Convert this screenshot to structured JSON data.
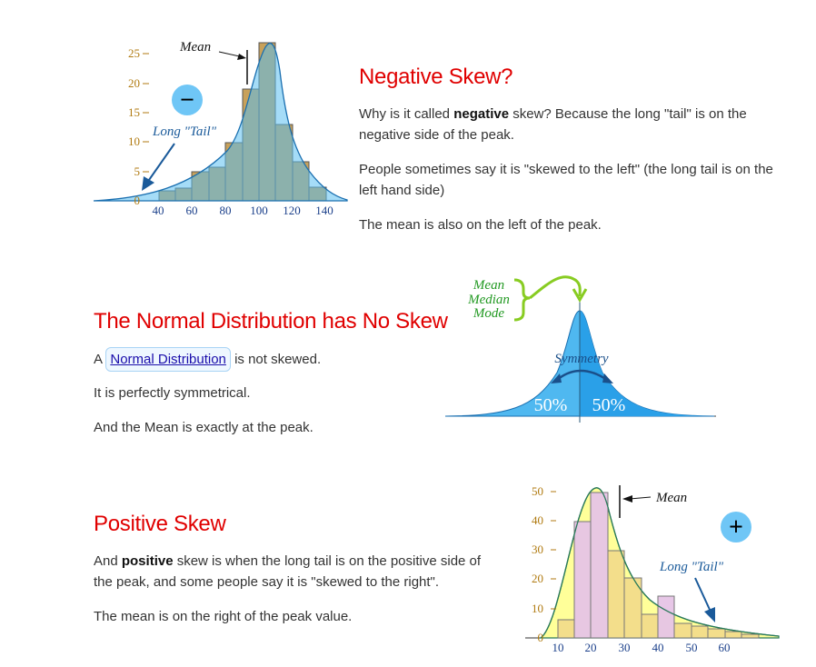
{
  "negative": {
    "title": "Negative Skew?",
    "p1_a": "Why is it called ",
    "p1_b": "negative",
    "p1_c": " skew? Because the long \"tail\" is on the negative side of the peak.",
    "p2": "People sometimes say it is \"skewed to the left\" (the long tail is on the left hand side)",
    "p3": "The mean is also on the left of the peak."
  },
  "normal": {
    "title": "The Normal Distribution has No Skew",
    "p1_a": "A ",
    "p1_link": "Normal Distribution",
    "p1_c": " is not skewed.",
    "p2": "It is perfectly symmetrical.",
    "p3": "And the Mean is exactly at the peak."
  },
  "positive": {
    "title": "Positive Skew",
    "p1_a": "And ",
    "p1_b": "positive",
    "p1_c": " skew is when the long tail is on the positive side of the peak, and some people say it is \"skewed to the right\".",
    "p2": "The mean is on the right of the peak value."
  },
  "chart_data": [
    {
      "type": "bar",
      "x": [
        40,
        50,
        60,
        70,
        80,
        90,
        100,
        110,
        120,
        130,
        140
      ],
      "values": [
        1,
        1.5,
        5,
        6,
        10,
        19,
        27,
        13,
        7,
        2,
        0
      ],
      "xticks": [
        "40",
        "60",
        "80",
        "100",
        "120",
        "140"
      ],
      "yticks": [
        "0",
        "5",
        "10",
        "15",
        "20",
        "25"
      ],
      "ylim": [
        0,
        27
      ],
      "annotations": [
        "Mean",
        "Long \"Tail\""
      ],
      "sign": "−",
      "colors": {
        "bar": "#c8a15a",
        "curve_fill": "#5bc0f0",
        "curve_line": "#1a6fb0"
      }
    },
    {
      "type": "area",
      "labels": [
        "Mean",
        "Median",
        "Mode",
        "Symmetry",
        "50%",
        "50%"
      ],
      "colors": {
        "fill": "#4fb8f0",
        "brace": "#88cc22",
        "label": "#229922"
      }
    },
    {
      "type": "bar",
      "x": [
        10,
        15,
        20,
        25,
        30,
        35,
        40,
        45,
        50,
        55,
        60,
        65
      ],
      "values": [
        6,
        40,
        50,
        30,
        21,
        8,
        14,
        5,
        4,
        3,
        2,
        1
      ],
      "xticks": [
        "10",
        "20",
        "30",
        "40",
        "50",
        "60"
      ],
      "yticks": [
        "0",
        "10",
        "20",
        "30",
        "40",
        "50"
      ],
      "ylim": [
        0,
        52
      ],
      "annotations": [
        "Mean",
        "Long \"Tail\""
      ],
      "sign": "+",
      "colors": {
        "bar": "#f2dc8a",
        "curve_fill": "#ffff99",
        "curve_line": "#2a7a5a"
      }
    }
  ]
}
